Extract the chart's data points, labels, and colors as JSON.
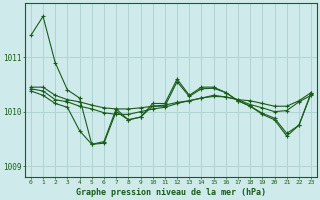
{
  "title": "Graphe pression niveau de la mer (hPa)",
  "background_color": "#ceeaea",
  "line_color": "#1a5c1a",
  "grid_color": "#b0d4d4",
  "xlim": [
    -0.5,
    23.5
  ],
  "ylim": [
    1008.8,
    1012.0
  ],
  "yticks": [
    1009,
    1010,
    1011
  ],
  "xticks": [
    0,
    1,
    2,
    3,
    4,
    5,
    6,
    7,
    8,
    9,
    10,
    11,
    12,
    13,
    14,
    15,
    16,
    17,
    18,
    19,
    20,
    21,
    22,
    23
  ],
  "series": [
    [
      1011.4,
      1011.75,
      1010.9,
      1010.4,
      1010.25,
      1009.4,
      1009.45,
      1010.05,
      1009.85,
      1009.9,
      1010.15,
      1010.15,
      1010.6,
      1010.3,
      1010.45,
      1010.45,
      1010.35,
      1010.2,
      1010.1,
      1009.95,
      1009.85,
      1009.55,
      1009.75,
      1010.35
    ],
    [
      1010.45,
      1010.45,
      1010.3,
      1010.22,
      1010.18,
      1010.12,
      1010.07,
      1010.05,
      1010.05,
      1010.07,
      1010.1,
      1010.12,
      1010.17,
      1010.2,
      1010.25,
      1010.28,
      1010.27,
      1010.22,
      1010.2,
      1010.15,
      1010.1,
      1010.1,
      1010.2,
      1010.35
    ],
    [
      1010.42,
      1010.38,
      1010.22,
      1010.18,
      1010.1,
      1010.05,
      1009.98,
      1009.95,
      1009.95,
      1010.0,
      1010.05,
      1010.08,
      1010.15,
      1010.2,
      1010.25,
      1010.3,
      1010.27,
      1010.22,
      1010.13,
      1010.07,
      1010.0,
      1010.02,
      1010.18,
      1010.3
    ],
    [
      1010.38,
      1010.3,
      1010.15,
      1010.08,
      1009.65,
      1009.4,
      1009.42,
      1010.0,
      1009.85,
      1009.9,
      1010.1,
      1010.1,
      1010.55,
      1010.28,
      1010.42,
      1010.43,
      1010.35,
      1010.2,
      1010.1,
      1009.97,
      1009.88,
      1009.6,
      1009.75,
      1010.33
    ]
  ]
}
